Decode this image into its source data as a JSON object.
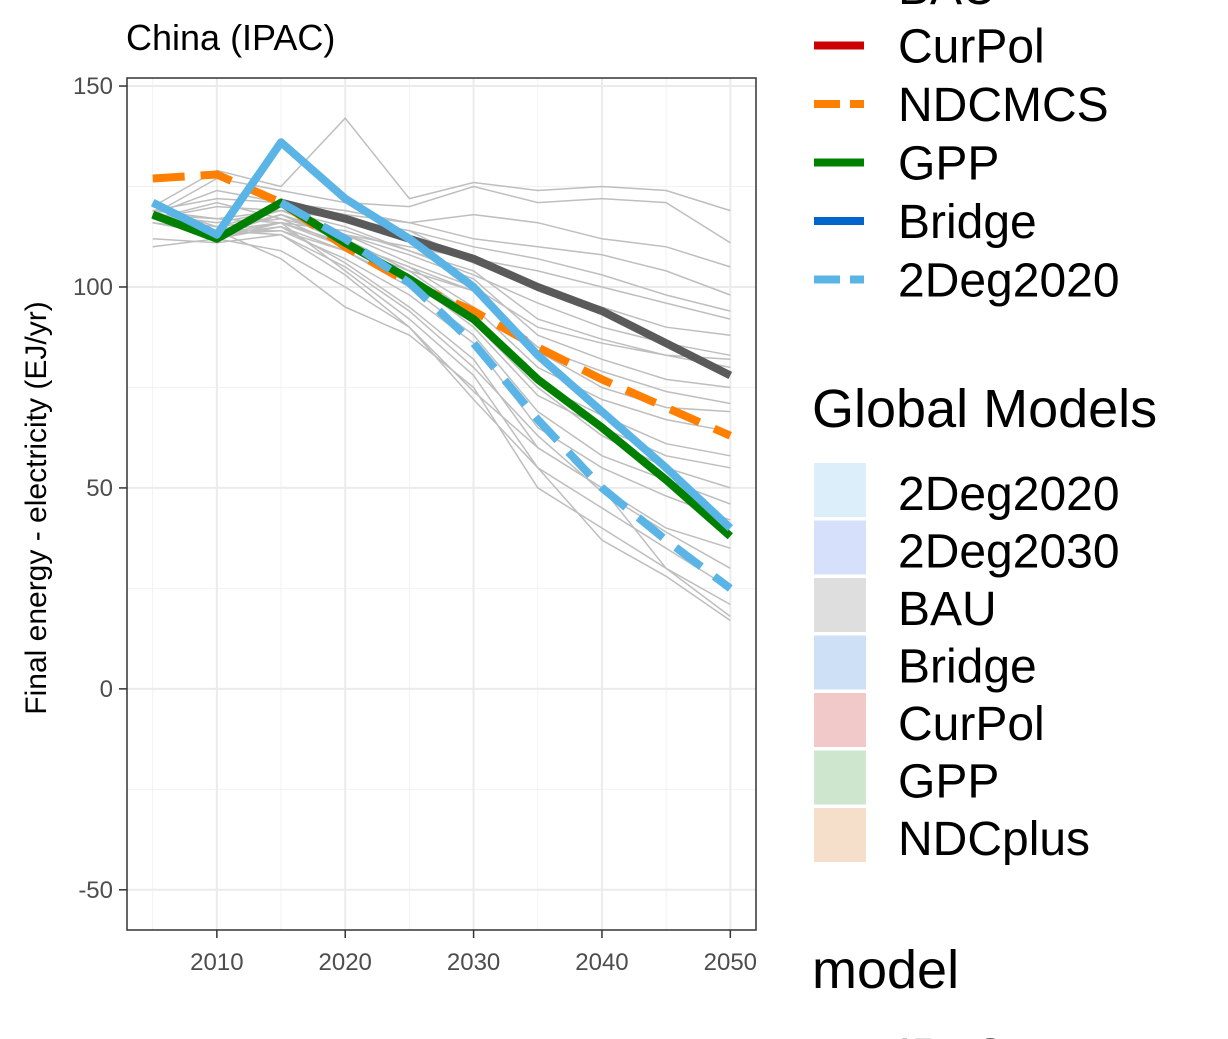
{
  "chart_data": {
    "type": "line",
    "title": "China (IPAC)",
    "xlabel": "",
    "ylabel": "Final energy - electricity (EJ/yr)",
    "xlim": [
      2003,
      2052
    ],
    "ylim": [
      -60,
      152
    ],
    "x_ticks": [
      2010,
      2020,
      2030,
      2040,
      2050
    ],
    "y_ticks": [
      -50,
      0,
      50,
      100,
      150
    ],
    "grid": true,
    "legend_placement": "right",
    "background_series": {
      "color": "#bebebe",
      "count": 26,
      "x": [
        2005,
        2010,
        2015,
        2020,
        2025,
        2030,
        2035,
        2040,
        2045,
        2050
      ],
      "series": [
        {
          "values": [
            117,
            113,
            121,
            118,
            112,
            106,
            100,
            94,
            86,
            78
          ]
        },
        {
          "values": [
            120,
            129,
            125,
            142,
            122,
            126,
            124,
            125,
            124,
            119
          ]
        },
        {
          "values": [
            118,
            127,
            124,
            121,
            120,
            125,
            121,
            122,
            121,
            111
          ]
        },
        {
          "values": [
            118,
            124,
            121,
            118,
            116,
            118,
            116,
            112,
            110,
            105
          ]
        },
        {
          "values": [
            119,
            122,
            121,
            119,
            116,
            112,
            110,
            108,
            104,
            98
          ]
        },
        {
          "values": [
            117,
            120,
            119,
            117,
            114,
            110,
            107,
            103,
            98,
            94
          ]
        },
        {
          "values": [
            117,
            121,
            117,
            113,
            110,
            107,
            104,
            100,
            96,
            92
          ]
        },
        {
          "values": [
            119,
            117,
            119,
            117,
            114,
            106,
            100,
            95,
            90,
            88
          ]
        },
        {
          "values": [
            118,
            117,
            116,
            114,
            109,
            103,
            96,
            90,
            86,
            83
          ]
        },
        {
          "values": [
            118,
            116,
            119,
            115,
            109,
            104,
            92,
            87,
            83,
            82
          ]
        },
        {
          "values": [
            120,
            115,
            119,
            113,
            106,
            100,
            90,
            86,
            83,
            80
          ]
        },
        {
          "values": [
            118,
            114,
            118,
            113,
            108,
            102,
            88,
            82,
            77,
            75
          ]
        },
        {
          "values": [
            117,
            113,
            118,
            111,
            105,
            99,
            85,
            79,
            74,
            71
          ]
        },
        {
          "values": [
            117,
            115,
            117,
            110,
            104,
            99,
            84,
            75,
            70,
            69
          ]
        },
        {
          "values": [
            118,
            114,
            116,
            111,
            105,
            95,
            80,
            72,
            67,
            64
          ]
        },
        {
          "values": [
            119,
            113,
            118,
            112,
            104,
            93,
            76,
            68,
            61,
            58
          ]
        },
        {
          "values": [
            117,
            112,
            116,
            110,
            102,
            90,
            73,
            65,
            58,
            55
          ]
        },
        {
          "values": [
            116,
            113,
            114,
            109,
            101,
            91,
            75,
            63,
            55,
            50
          ]
        },
        {
          "values": [
            117,
            112,
            115,
            109,
            100,
            88,
            69,
            58,
            52,
            46
          ]
        },
        {
          "values": [
            118,
            114,
            114,
            107,
            98,
            86,
            65,
            55,
            48,
            42
          ]
        },
        {
          "values": [
            117,
            113,
            115,
            106,
            95,
            82,
            60,
            50,
            40,
            35
          ]
        },
        {
          "values": [
            116,
            114,
            113,
            105,
            94,
            80,
            63,
            49,
            39,
            30
          ]
        },
        {
          "values": [
            116,
            113,
            116,
            104,
            92,
            78,
            55,
            45,
            35,
            25
          ]
        },
        {
          "values": [
            117,
            114,
            107,
            95,
            88,
            75,
            50,
            40,
            30,
            21
          ]
        },
        {
          "values": [
            110,
            112,
            109,
            100,
            90,
            74,
            60,
            50,
            30,
            18
          ]
        },
        {
          "values": [
            112,
            111,
            113,
            103,
            90,
            72,
            55,
            37,
            28,
            17
          ]
        }
      ]
    },
    "series": [
      {
        "name": "BAU",
        "color": "#5a5a5a",
        "dash": "solid",
        "x": [
          2015,
          2020,
          2025,
          2030,
          2035,
          2040,
          2045,
          2050
        ],
        "values": [
          121,
          117,
          112,
          107,
          100,
          94,
          86,
          78
        ]
      },
      {
        "name": "NDCMCS",
        "color": "#ff7f00",
        "dash": "dashed",
        "x": [
          2005,
          2010,
          2015,
          2020,
          2025,
          2030,
          2035,
          2040,
          2045,
          2050
        ],
        "values": [
          127,
          128,
          121,
          110,
          101,
          94,
          85,
          77,
          70,
          63
        ]
      },
      {
        "name": "GPP",
        "color": "#008000",
        "dash": "solid",
        "x": [
          2005,
          2010,
          2015,
          2020,
          2025,
          2030,
          2035,
          2040,
          2045,
          2050
        ],
        "values": [
          118,
          112,
          121,
          111,
          102,
          92,
          77,
          65,
          52,
          38
        ]
      },
      {
        "name": "2Deg2020",
        "color": "#5ab4e6",
        "dash": "solid",
        "x": [
          2005,
          2010,
          2015,
          2020,
          2025,
          2030,
          2035,
          2040,
          2045,
          2050
        ],
        "values": [
          121,
          113,
          136,
          122,
          112,
          100,
          83,
          69,
          55,
          40
        ]
      },
      {
        "name": "2Deg2020",
        "color": "#5ab4e6",
        "dash": "dashed",
        "x": [
          2015,
          2020,
          2025,
          2030,
          2035,
          2040,
          2045,
          2050
        ],
        "values": [
          121,
          112,
          101,
          86,
          67,
          50,
          37,
          25
        ]
      }
    ]
  },
  "legend": {
    "scenario_items": [
      {
        "label": "BAU",
        "color": "#5a5a5a",
        "dash": "solid"
      },
      {
        "label": "CurPol",
        "color": "#cc0000",
        "dash": "solid"
      },
      {
        "label": "NDCMCS",
        "color": "#ff7f00",
        "dash": "dashed"
      },
      {
        "label": "GPP",
        "color": "#008000",
        "dash": "solid"
      },
      {
        "label": "Bridge",
        "color": "#0066cc",
        "dash": "solid"
      },
      {
        "label": "2Deg2020",
        "color": "#5ab4e6",
        "dash": "dashed"
      }
    ],
    "global_title": "Global Models",
    "global_items": [
      {
        "label": "2Deg2020",
        "color": "#ddeefb"
      },
      {
        "label": "2Deg2030",
        "color": "#d6e0fa"
      },
      {
        "label": "BAU",
        "color": "#dedede"
      },
      {
        "label": "Bridge",
        "color": "#cde0f5"
      },
      {
        "label": "CurPol",
        "color": "#f2c9c9"
      },
      {
        "label": "GPP",
        "color": "#cde6cd"
      },
      {
        "label": "NDCplus",
        "color": "#f5dfca"
      }
    ],
    "model_title": "model",
    "model_items": [
      {
        "label": "IPAC",
        "color": "#000000"
      }
    ]
  }
}
